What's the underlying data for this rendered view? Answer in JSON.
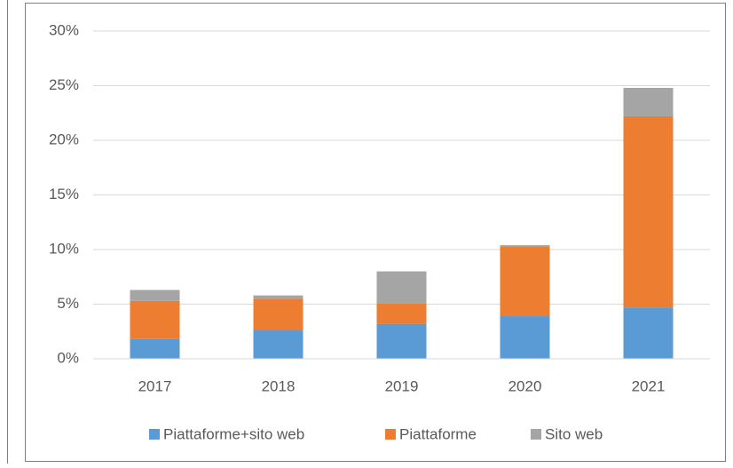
{
  "chart_data": {
    "type": "bar",
    "stacked": true,
    "categories": [
      "2017",
      "2018",
      "2019",
      "2020",
      "2021"
    ],
    "series": [
      {
        "name": "Piattaforme+sito web",
        "color": "#5b9bd5",
        "values": [
          1.8,
          2.6,
          3.2,
          3.9,
          4.7
        ]
      },
      {
        "name": "Piattaforme",
        "color": "#ed7d31",
        "values": [
          3.5,
          2.9,
          1.9,
          6.4,
          17.5
        ]
      },
      {
        "name": "Sito web",
        "color": "#a5a5a5",
        "values": [
          1.0,
          0.3,
          2.9,
          0.1,
          2.6
        ]
      }
    ],
    "ylim": [
      0,
      30
    ],
    "yticks": [
      {
        "value": 0,
        "label": "0%"
      },
      {
        "value": 5,
        "label": "5%"
      },
      {
        "value": 10,
        "label": "10%"
      },
      {
        "value": 15,
        "label": "15%"
      },
      {
        "value": 20,
        "label": "20%"
      },
      {
        "value": 25,
        "label": "25%"
      },
      {
        "value": 30,
        "label": "30%"
      }
    ],
    "grid": true,
    "legend": "bottom"
  }
}
